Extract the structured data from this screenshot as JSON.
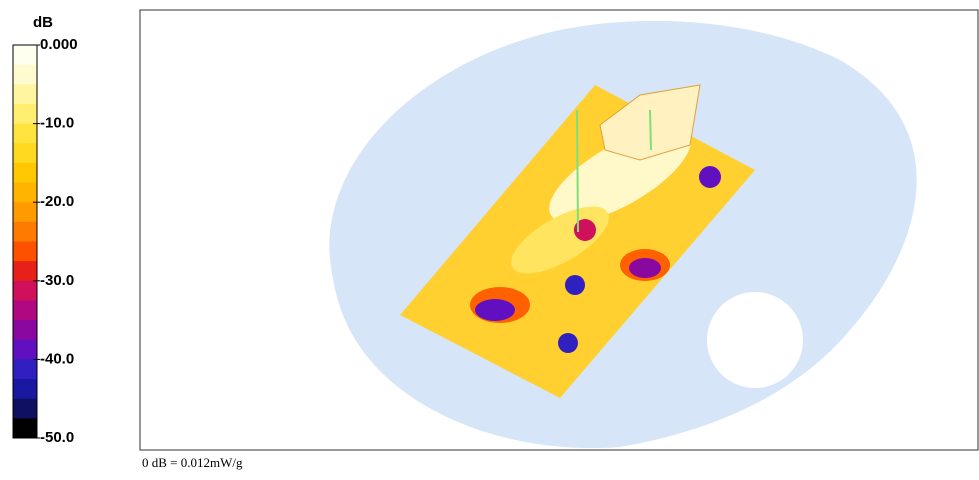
{
  "chart_data": {
    "type": "colormap",
    "title": "dB",
    "zlim": [
      -50,
      0
    ],
    "zticks": [
      {
        "value": 0,
        "label": "0.000"
      },
      {
        "value": -10,
        "label": "-10.0"
      },
      {
        "value": -20,
        "label": "-20.0"
      },
      {
        "value": -30,
        "label": "-30.0"
      },
      {
        "value": -40,
        "label": "-40.0"
      },
      {
        "value": -50,
        "label": "-50.0"
      }
    ],
    "colors": [
      "#fffff0",
      "#fffbd0",
      "#fff5a0",
      "#ffee70",
      "#ffe440",
      "#ffd820",
      "#ffc800",
      "#ffb400",
      "#ff9a00",
      "#ff7a00",
      "#ff5000",
      "#e8201a",
      "#d0105a",
      "#b00880",
      "#8808a0",
      "#6010c0",
      "#3020c0",
      "#1818a0",
      "#101060",
      "#000000"
    ],
    "note": "0 dB = 0.012mW/g"
  }
}
